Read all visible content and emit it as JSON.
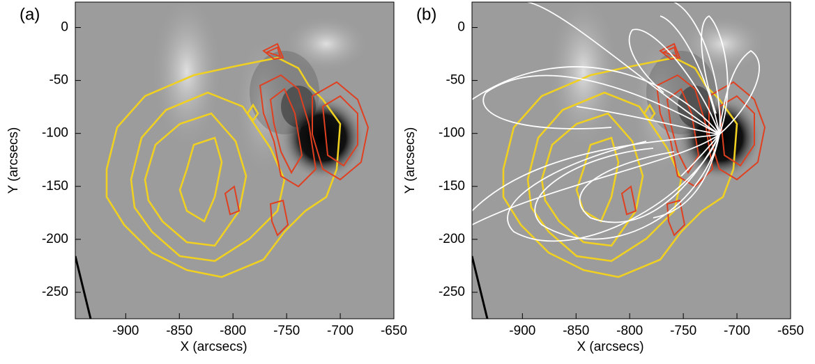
{
  "chart_data": [
    {
      "type": "image",
      "panel_label": "(a)",
      "xlabel": "X (arcsecs)",
      "ylabel": "Y (arcsecs)",
      "xlim": [
        -947,
        -650
      ],
      "ylim": [
        -275,
        24
      ],
      "xticks": [
        -900,
        -850,
        -800,
        -750,
        -700,
        -650
      ],
      "yticks": [
        0,
        -50,
        -100,
        -150,
        -200,
        -250
      ]
    },
    {
      "type": "image",
      "panel_label": "(b)",
      "xlabel": "X (arcsecs)",
      "ylabel": "Y (arcsecs)",
      "xlim": [
        -947,
        -650
      ],
      "ylim": [
        -275,
        24
      ],
      "xticks": [
        -900,
        -850,
        -800,
        -750,
        -700,
        -650
      ],
      "yticks": [
        0,
        -50,
        -100,
        -150,
        -200,
        -250
      ]
    }
  ]
}
